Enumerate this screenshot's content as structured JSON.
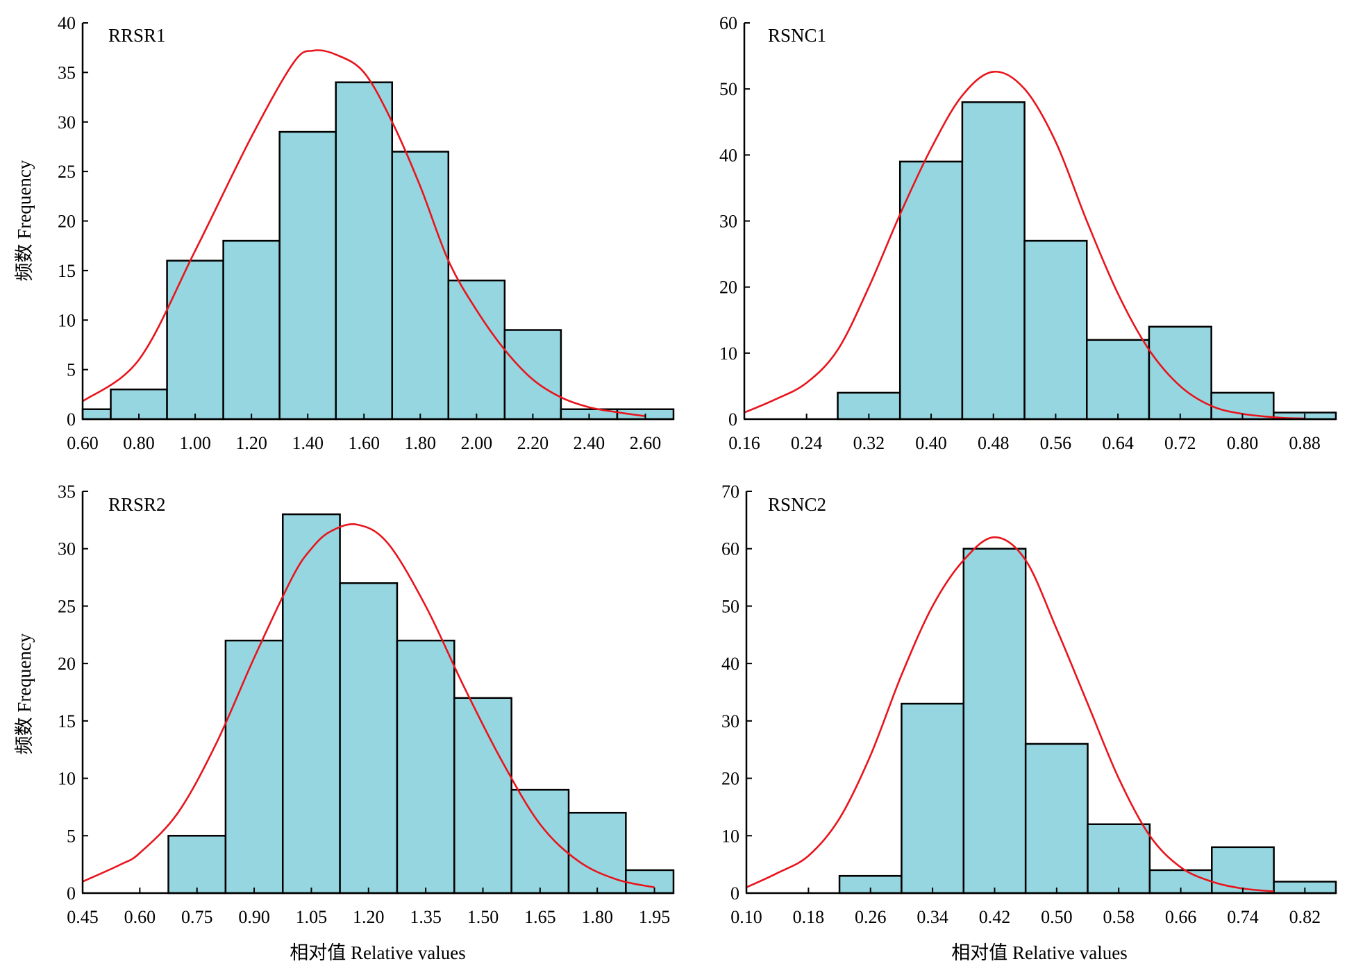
{
  "figure": {
    "ylabel": "频数 Frequency",
    "xlabel": "相对值 Relative values",
    "bar_color": "#96d6e0",
    "bar_edge_color": "#000000",
    "curve_color": "#e8141c"
  },
  "chart_data": [
    {
      "type": "bar",
      "title": "RRSR1",
      "xlim": [
        0.6,
        2.7
      ],
      "ylim": [
        0,
        40
      ],
      "x_ticks": [
        "0.60",
        "0.80",
        "1.00",
        "1.20",
        "1.40",
        "1.60",
        "1.80",
        "2.00",
        "2.20",
        "2.40",
        "2.60"
      ],
      "y_ticks": [
        "0",
        "5",
        "10",
        "15",
        "20",
        "25",
        "30",
        "35",
        "40"
      ],
      "bin_width": 0.2,
      "bin_starts": [
        0.5,
        0.7,
        0.9,
        1.1,
        1.3,
        1.5,
        1.7,
        1.9,
        2.1,
        2.3,
        2.5
      ],
      "values": [
        1,
        3,
        16,
        18,
        29,
        34,
        27,
        14,
        9,
        1,
        1
      ],
      "curve": {
        "type": "density_line",
        "points": [
          [
            0.6,
            1.8
          ],
          [
            0.8,
            6
          ],
          [
            1.0,
            17
          ],
          [
            1.2,
            28.5
          ],
          [
            1.35,
            36
          ],
          [
            1.42,
            37.2
          ],
          [
            1.5,
            36.8
          ],
          [
            1.6,
            35
          ],
          [
            1.7,
            30
          ],
          [
            1.8,
            23.5
          ],
          [
            1.9,
            16
          ],
          [
            2.0,
            11
          ],
          [
            2.1,
            7
          ],
          [
            2.2,
            4
          ],
          [
            2.3,
            2.2
          ],
          [
            2.4,
            1.2
          ],
          [
            2.5,
            0.7
          ],
          [
            2.6,
            0.3
          ]
        ]
      }
    },
    {
      "type": "bar",
      "title": "RSNC1",
      "xlim": [
        0.16,
        0.92
      ],
      "ylim": [
        0,
        60
      ],
      "x_ticks": [
        "0.16",
        "0.24",
        "0.32",
        "0.40",
        "0.48",
        "0.56",
        "0.64",
        "0.72",
        "0.80",
        "0.88"
      ],
      "y_ticks": [
        "0",
        "10",
        "20",
        "30",
        "40",
        "50",
        "60"
      ],
      "bin_width": 0.08,
      "bin_starts": [
        0.28,
        0.36,
        0.44,
        0.52,
        0.6,
        0.68,
        0.76,
        0.84
      ],
      "values": [
        4,
        39,
        48,
        27,
        12,
        14,
        4,
        1
      ],
      "curve": {
        "type": "density_line",
        "points": [
          [
            0.16,
            1
          ],
          [
            0.2,
            3
          ],
          [
            0.24,
            5.5
          ],
          [
            0.28,
            10.5
          ],
          [
            0.32,
            20
          ],
          [
            0.36,
            31
          ],
          [
            0.4,
            41
          ],
          [
            0.44,
            49
          ],
          [
            0.48,
            52.6
          ],
          [
            0.52,
            50
          ],
          [
            0.56,
            42
          ],
          [
            0.6,
            30
          ],
          [
            0.64,
            19
          ],
          [
            0.68,
            10.5
          ],
          [
            0.72,
            5
          ],
          [
            0.76,
            2
          ],
          [
            0.8,
            0.8
          ],
          [
            0.85,
            0.2
          ],
          [
            0.88,
            0.1
          ]
        ]
      }
    },
    {
      "type": "bar",
      "title": "RRSR2",
      "xlim": [
        0.45,
        2.0
      ],
      "ylim": [
        0,
        35
      ],
      "x_ticks": [
        "0.45",
        "0.60",
        "0.75",
        "0.90",
        "1.05",
        "1.20",
        "1.35",
        "1.50",
        "1.65",
        "1.80",
        "1.95"
      ],
      "y_ticks": [
        "0",
        "5",
        "10",
        "15",
        "20",
        "25",
        "30",
        "35"
      ],
      "bin_width": 0.15,
      "bin_starts": [
        0.675,
        0.825,
        0.975,
        1.125,
        1.275,
        1.425,
        1.575,
        1.725,
        1.875
      ],
      "values": [
        5,
        22,
        33,
        27,
        22,
        17,
        9,
        7,
        2
      ],
      "curve": {
        "type": "density_line",
        "points": [
          [
            0.45,
            1
          ],
          [
            0.55,
            2.5
          ],
          [
            0.6,
            3.5
          ],
          [
            0.7,
            7
          ],
          [
            0.8,
            13
          ],
          [
            0.9,
            20.5
          ],
          [
            1.0,
            27.5
          ],
          [
            1.05,
            30
          ],
          [
            1.1,
            31.5
          ],
          [
            1.17,
            32.1
          ],
          [
            1.25,
            30.5
          ],
          [
            1.35,
            25
          ],
          [
            1.45,
            18
          ],
          [
            1.55,
            11.5
          ],
          [
            1.65,
            6
          ],
          [
            1.75,
            2.8
          ],
          [
            1.85,
            1.2
          ],
          [
            1.95,
            0.5
          ]
        ]
      }
    },
    {
      "type": "bar",
      "title": "RSNC2",
      "xlim": [
        0.1,
        0.86
      ],
      "ylim": [
        0,
        70
      ],
      "x_ticks": [
        "0.10",
        "0.18",
        "0.26",
        "0.34",
        "0.42",
        "0.50",
        "0.58",
        "0.66",
        "0.74",
        "0.82"
      ],
      "y_ticks": [
        "0",
        "10",
        "20",
        "30",
        "40",
        "50",
        "60",
        "70"
      ],
      "bin_width": 0.08,
      "bin_starts": [
        0.22,
        0.3,
        0.38,
        0.46,
        0.54,
        0.62,
        0.7,
        0.78
      ],
      "values": [
        3,
        33,
        60,
        26,
        12,
        4,
        8,
        2
      ],
      "curve": {
        "type": "density_line",
        "points": [
          [
            0.1,
            1
          ],
          [
            0.14,
            3.5
          ],
          [
            0.18,
            6.5
          ],
          [
            0.22,
            13
          ],
          [
            0.26,
            24
          ],
          [
            0.3,
            38
          ],
          [
            0.34,
            50
          ],
          [
            0.38,
            58
          ],
          [
            0.42,
            62
          ],
          [
            0.46,
            58
          ],
          [
            0.5,
            46
          ],
          [
            0.54,
            33
          ],
          [
            0.58,
            20
          ],
          [
            0.62,
            10
          ],
          [
            0.66,
            4.5
          ],
          [
            0.7,
            2
          ],
          [
            0.74,
            0.8
          ],
          [
            0.78,
            0.3
          ]
        ]
      }
    }
  ]
}
